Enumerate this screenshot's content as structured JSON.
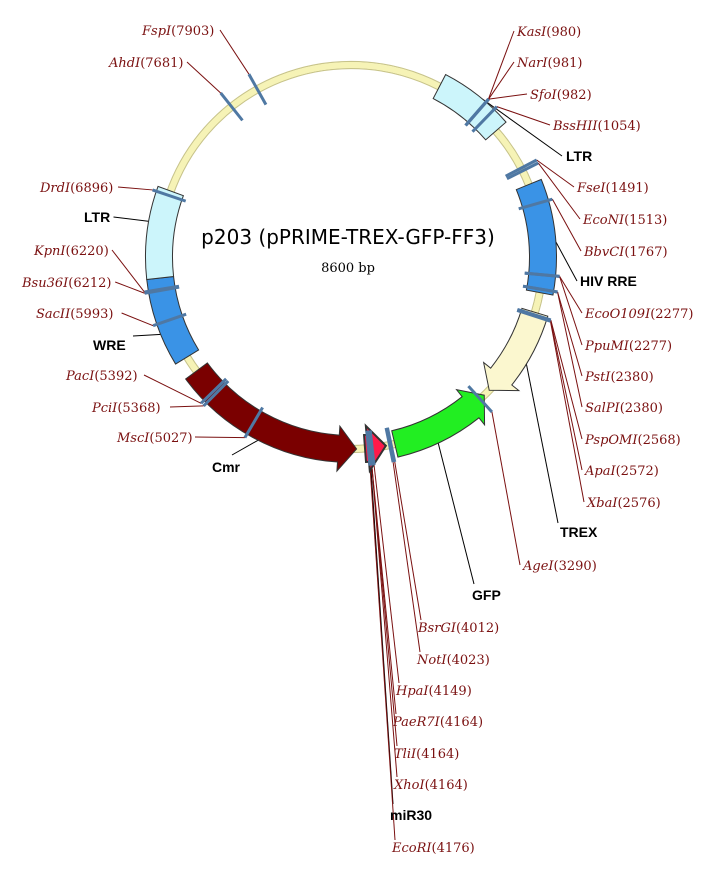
{
  "plasmid": {
    "name": "p203 (pPRIME-TREX-GFP-FF3)",
    "size_label": "8600 bp",
    "length": 8600
  },
  "colors": {
    "backbone": "#f6f3b6",
    "ltr": "#ccf5fb",
    "blue": "#3a93e6",
    "trex": "#fbf7cf",
    "gfp": "#22ee22",
    "mir30": "#ff1a4a",
    "cmr": "#7a0000",
    "tick": "#4f78a3",
    "enzyme_line": "#7a1010",
    "feature_line": "#000000"
  },
  "features": [
    {
      "name": "LTR",
      "start": 655,
      "end": 1170,
      "color_key": "ltr",
      "direction": "none"
    },
    {
      "name": "HIV RRE",
      "start": 1620,
      "end": 2405,
      "color_key": "blue",
      "direction": "none"
    },
    {
      "name": "TREX",
      "start": 2550,
      "end": 3200,
      "color_key": "trex",
      "direction": "forward"
    },
    {
      "name": "GFP",
      "start": 3250,
      "end": 3985,
      "color_key": "gfp",
      "direction": "reverse"
    },
    {
      "name": "miR30",
      "start": 4050,
      "end": 4200,
      "color_key": "mir30",
      "direction": "reverse"
    },
    {
      "name": "Cmr",
      "start": 4260,
      "end": 5580,
      "color_key": "cmr",
      "direction": "reverse"
    },
    {
      "name": "WRE",
      "start": 5700,
      "end": 6300,
      "color_key": "blue",
      "direction": "none"
    },
    {
      "name": "LTR",
      "start": 6300,
      "end": 6930,
      "color_key": "ltr",
      "direction": "none"
    }
  ],
  "feature_labels": [
    {
      "text": "LTR",
      "position": 950
    },
    {
      "text": "HIV RRE",
      "position": 2050
    },
    {
      "text": "TREX",
      "position": 2900
    },
    {
      "text": "GFP",
      "position": 3700
    },
    {
      "text": "miR30",
      "position": 4170
    },
    {
      "text": "Cmr",
      "position": 4800
    },
    {
      "text": "WRE",
      "position": 5850
    },
    {
      "text": "LTR",
      "position": 6700
    }
  ],
  "enzymes": [
    {
      "name": "KasI",
      "position": 980
    },
    {
      "name": "NarI",
      "position": 981
    },
    {
      "name": "SfoI",
      "position": 982
    },
    {
      "name": "BssHII",
      "position": 1054
    },
    {
      "name": "FseI",
      "position": 1491
    },
    {
      "name": "EcoNI",
      "position": 1513
    },
    {
      "name": "BbvCI",
      "position": 1767
    },
    {
      "name": "EcoO109I",
      "position": 2277
    },
    {
      "name": "PpuMI",
      "position": 2277
    },
    {
      "name": "PstI",
      "position": 2380
    },
    {
      "name": "SalPI",
      "position": 2380
    },
    {
      "name": "PspOMI",
      "position": 2568
    },
    {
      "name": "ApaI",
      "position": 2572
    },
    {
      "name": "XbaI",
      "position": 2576
    },
    {
      "name": "AgeI",
      "position": 3290
    },
    {
      "name": "BsrGI",
      "position": 4012
    },
    {
      "name": "NotI",
      "position": 4023
    },
    {
      "name": "HpaI",
      "position": 4149
    },
    {
      "name": "PaeR7I",
      "position": 4164
    },
    {
      "name": "TliI",
      "position": 4164
    },
    {
      "name": "XhoI",
      "position": 4164
    },
    {
      "name": "EcoRI",
      "position": 4176
    },
    {
      "name": "MscI",
      "position": 5027
    },
    {
      "name": "PciI",
      "position": 5368
    },
    {
      "name": "PacI",
      "position": 5392
    },
    {
      "name": "SacII",
      "position": 5993
    },
    {
      "name": "Bsu36I",
      "position": 6212
    },
    {
      "name": "KpnI",
      "position": 6220
    },
    {
      "name": "DrdI",
      "position": 6896
    },
    {
      "name": "AhdI",
      "position": 7681
    },
    {
      "name": "FspI",
      "position": 7903
    }
  ]
}
